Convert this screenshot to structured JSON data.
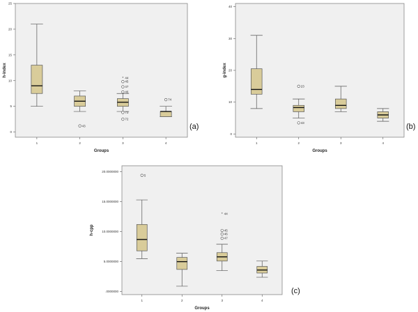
{
  "chart_data": [
    {
      "id": "a",
      "type": "box",
      "panel_label": "(a)",
      "xlabel": "Groups",
      "ylabel": "h-index",
      "ylim": [
        -1,
        25
      ],
      "yticks": [
        0,
        5,
        10,
        15,
        20,
        25
      ],
      "ytick_labels": [
        "0",
        "5",
        "10",
        "15",
        "20",
        "25"
      ],
      "categories": [
        "1",
        "2",
        "3",
        "4"
      ],
      "boxes": [
        {
          "category": "1",
          "min": 5,
          "q1": 7.5,
          "median": 9,
          "q3": 13,
          "max": 21,
          "outliers": []
        },
        {
          "category": "2",
          "min": 4,
          "q1": 5,
          "median": 6,
          "q3": 7,
          "max": 8,
          "outliers": [
            {
              "value": 1.2,
              "label": "43",
              "marker": "circle"
            }
          ]
        },
        {
          "category": "3",
          "min": 4,
          "q1": 5,
          "median": 5.8,
          "q3": 6.5,
          "max": 7.5,
          "outliers": [
            {
              "value": 10.5,
              "label": "44",
              "marker": "star"
            },
            {
              "value": 9.8,
              "label": "45",
              "marker": "circle"
            },
            {
              "value": 8.8,
              "label": "47",
              "marker": "circle"
            },
            {
              "value": 7.8,
              "label": "46",
              "marker": "circle"
            },
            {
              "value": 3.8,
              "label": "73",
              "marker": "circle"
            },
            {
              "value": 2.5,
              "label": "72",
              "marker": "circle"
            }
          ]
        },
        {
          "category": "4",
          "min": 3,
          "q1": 3,
          "median": 4,
          "q3": 4,
          "max": 5,
          "outliers": [
            {
              "value": 6.3,
              "label": "74",
              "marker": "circle"
            }
          ]
        }
      ]
    },
    {
      "id": "b",
      "type": "box",
      "panel_label": "(b)",
      "xlabel": "Groups",
      "ylabel": "g-index",
      "ylim": [
        -1,
        41
      ],
      "yticks": [
        0,
        10,
        20,
        30,
        40
      ],
      "ytick_labels": [
        "0",
        "10",
        "20",
        "30",
        "40"
      ],
      "categories": [
        "1",
        "2",
        "3",
        "4"
      ],
      "boxes": [
        {
          "category": "1",
          "min": 8,
          "q1": 12.5,
          "median": 14,
          "q3": 20.5,
          "max": 31,
          "outliers": []
        },
        {
          "category": "2",
          "min": 5,
          "q1": 7,
          "median": 8.3,
          "q3": 9,
          "max": 11,
          "outliers": [
            {
              "value": 15,
              "label": "23",
              "marker": "circle"
            },
            {
              "value": 3.5,
              "label": "43",
              "marker": "circle"
            }
          ]
        },
        {
          "category": "3",
          "min": 7,
          "q1": 8,
          "median": 9,
          "q3": 11,
          "max": 15,
          "outliers": []
        },
        {
          "category": "4",
          "min": 4,
          "q1": 5,
          "median": 6,
          "q3": 7,
          "max": 8,
          "outliers": []
        }
      ]
    },
    {
      "id": "c",
      "type": "box",
      "panel_label": "(c)",
      "xlabel": "Groups",
      "ylabel": "h-cpp",
      "ylim": [
        -0.5,
        21
      ],
      "yticks": [
        0,
        5,
        10,
        15,
        20
      ],
      "ytick_labels": [
        ".0000000",
        "5.0000000",
        "10.0000000",
        "15.0000000",
        "20.0000000"
      ],
      "categories": [
        "1",
        "2",
        "3",
        "4"
      ],
      "boxes": [
        {
          "category": "1",
          "min": 5.5,
          "q1": 6.8,
          "median": 8.7,
          "q3": 11.2,
          "max": 15.3,
          "outliers": [
            {
              "value": 19.4,
              "label": "5",
              "marker": "circle"
            }
          ]
        },
        {
          "category": "2",
          "min": 0.9,
          "q1": 3.7,
          "median": 5,
          "q3": 5.7,
          "max": 6.4,
          "outliers": []
        },
        {
          "category": "3",
          "min": 3.5,
          "q1": 5.1,
          "median": 5.8,
          "q3": 6.5,
          "max": 7.9,
          "outliers": [
            {
              "value": 13,
              "label": "44",
              "marker": "star"
            },
            {
              "value": 10.2,
              "label": "45",
              "marker": "circle"
            },
            {
              "value": 9.6,
              "label": "46",
              "marker": "circle"
            },
            {
              "value": 8.9,
              "label": "47",
              "marker": "circle"
            }
          ]
        },
        {
          "category": "4",
          "min": 2.4,
          "q1": 3.1,
          "median": 3.6,
          "q3": 4.2,
          "max": 5.1,
          "outliers": []
        }
      ]
    }
  ]
}
